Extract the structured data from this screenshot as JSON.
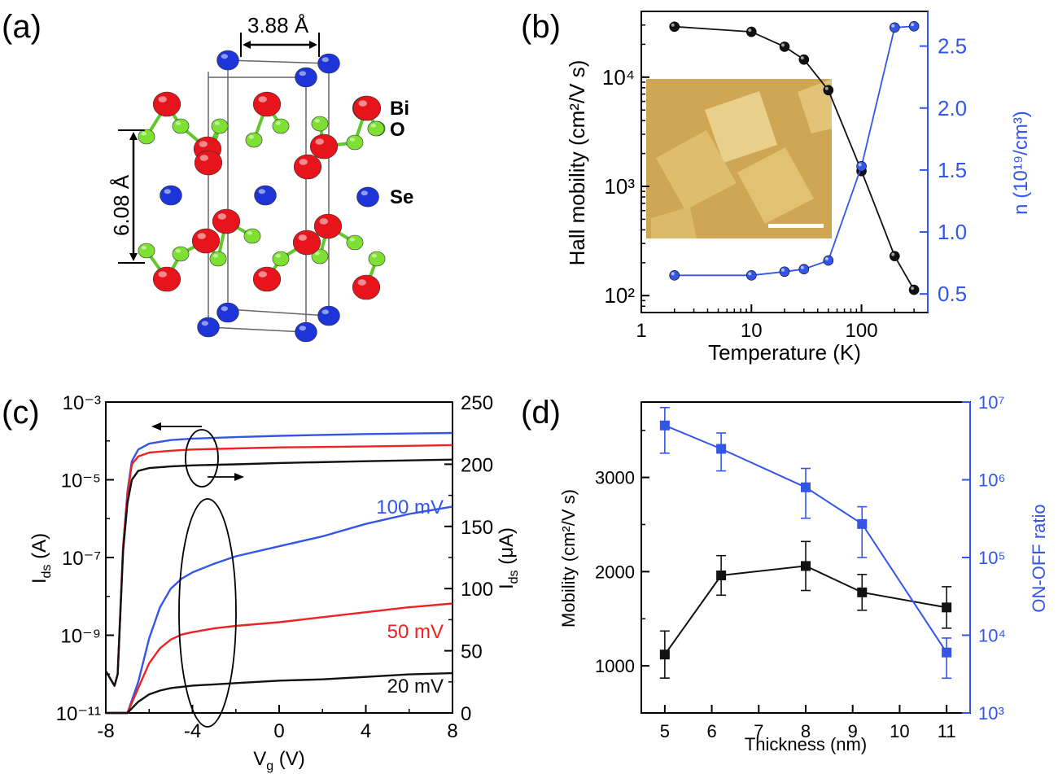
{
  "panels": {
    "a": {
      "label": "(a)",
      "lattice_a": "3.88 Å",
      "lattice_c": "6.08 Å",
      "legend": [
        {
          "name": "Bi",
          "color": "#e8141c"
        },
        {
          "name": "O",
          "color": "#7ee032"
        },
        {
          "name": "Se",
          "color": "#1c34d8"
        }
      ]
    },
    "b": {
      "label": "(b)"
    },
    "c": {
      "label": "(c)"
    },
    "d": {
      "label": "(d)"
    }
  },
  "colors": {
    "black": "#111111",
    "blue": "#3355e8",
    "red": "#ee2222",
    "axis_right": "#3355e8"
  },
  "chart_data": [
    {
      "id": "b",
      "type": "line",
      "xlabel": "Temperature (K)",
      "ylabel": "Hall mobility (cm²/V s)",
      "ylabel2": "n (10¹⁹/cm³)",
      "xscale": "log",
      "xlim": [
        1,
        400
      ],
      "yscale": "log",
      "ylim": [
        70,
        40000
      ],
      "y2lim": [
        0.35,
        2.78
      ],
      "xticks": [
        "1",
        "10",
        "100"
      ],
      "yticks": [
        "10²",
        "10³",
        "10⁴"
      ],
      "y2ticks": [
        "0.5",
        "1.0",
        "1.5",
        "2.0",
        "2.5"
      ],
      "inset": "AFM image of Bi2O2Se square flakes",
      "series": [
        {
          "axis": "left",
          "color": "#111111",
          "x": [
            2,
            10,
            20,
            30,
            50,
            100,
            200,
            300
          ],
          "y": [
            29000,
            26000,
            19000,
            14500,
            7600,
            1380,
            230,
            113
          ]
        },
        {
          "axis": "right",
          "color": "#3355e8",
          "x": [
            2,
            10,
            20,
            30,
            50,
            100,
            200,
            300
          ],
          "y": [
            0.65,
            0.65,
            0.68,
            0.7,
            0.77,
            1.53,
            2.65,
            2.66
          ]
        }
      ]
    },
    {
      "id": "c",
      "type": "line",
      "xlabel": "V (V)",
      "xlabel_sub": "g",
      "ylabel": "I (A)",
      "ylabel_sub": "ds",
      "ylabel2": "I (μA)",
      "ylabel2_sub": "ds",
      "xlim": [
        -8,
        8
      ],
      "xticks": [
        "-8",
        "-4",
        "0",
        "4",
        "8"
      ],
      "yscale": "log",
      "ylim": [
        1e-11,
        0.001
      ],
      "yticks": [
        "10⁻¹¹",
        "10⁻⁹",
        "10⁻⁷",
        "10⁻⁵",
        "10⁻³"
      ],
      "y2lim": [
        0,
        250
      ],
      "y2ticks": [
        "0",
        "50",
        "100",
        "150",
        "200",
        "250"
      ],
      "series": [
        {
          "name": "100 mV",
          "color": "#3355e8",
          "axis": "left",
          "x": [
            -8,
            -7.6,
            -7.45,
            -7.2,
            -7,
            -6.8,
            -6.5,
            -6,
            -5,
            -4,
            -2,
            0,
            4,
            8
          ],
          "y": [
            1.2e-10,
            5e-11,
            1e-10,
            2e-07,
            5e-06,
            3e-05,
            6e-05,
            8.5e-05,
            0.000105,
            0.000115,
            0.000125,
            0.000135,
            0.00015,
            0.00016
          ]
        },
        {
          "name": "50 mV",
          "color": "#ee2222",
          "axis": "left",
          "x": [
            -8,
            -7.6,
            -7.45,
            -7.2,
            -7,
            -6.8,
            -6.5,
            -6,
            -5,
            -4,
            -2,
            0,
            4,
            8
          ],
          "y": [
            1.2e-10,
            5e-11,
            1e-10,
            2e-07,
            4e-06,
            2.5e-05,
            4e-05,
            5e-05,
            5.6e-05,
            6e-05,
            6.4e-05,
            6.8e-05,
            7.2e-05,
            7.8e-05
          ]
        },
        {
          "name": "20 mV",
          "color": "#111111",
          "axis": "left",
          "x": [
            -8,
            -7.6,
            -7.45,
            -7.2,
            -7,
            -6.8,
            -6.5,
            -6,
            -5,
            -4,
            -2,
            0,
            4,
            8
          ],
          "y": [
            1.2e-10,
            5e-11,
            1e-10,
            1.5e-07,
            2.5e-06,
            1e-05,
            1.7e-05,
            2e-05,
            2.2e-05,
            2.35e-05,
            2.5e-05,
            2.7e-05,
            3e-05,
            3.3e-05
          ]
        },
        {
          "name": "100 mV",
          "color": "#3355e8",
          "axis": "right",
          "x": [
            -8,
            -7,
            -6.5,
            -6,
            -5.5,
            -5,
            -4.5,
            -4,
            -3,
            -2,
            0,
            2,
            4,
            6,
            8
          ],
          "y": [
            0,
            0,
            25,
            60,
            85,
            100,
            108,
            113,
            120,
            126,
            134,
            142,
            152,
            160,
            166
          ]
        },
        {
          "name": "50 mV",
          "color": "#ee2222",
          "axis": "right",
          "x": [
            -8,
            -7,
            -6.5,
            -6,
            -5.5,
            -5,
            -4.5,
            -4,
            -3,
            -2,
            0,
            2,
            4,
            6,
            8
          ],
          "y": [
            0,
            0,
            20,
            40,
            52,
            59,
            63,
            65,
            68,
            70,
            73,
            77,
            81,
            85,
            88
          ]
        },
        {
          "name": "20 mV",
          "color": "#111111",
          "axis": "right",
          "x": [
            -8,
            -7,
            -6.5,
            -6,
            -5.5,
            -5,
            -4.5,
            -4,
            -3,
            -2,
            0,
            2,
            4,
            6,
            8
          ],
          "y": [
            0,
            0,
            9,
            15,
            18,
            20,
            21,
            22,
            23,
            24,
            26,
            27,
            29,
            31,
            32
          ]
        }
      ]
    },
    {
      "id": "d",
      "type": "line",
      "xlabel": "Thickness (nm)",
      "ylabel": "Mobility (cm²/V s)",
      "ylabel2": "ON-OFF ratio",
      "xlim": [
        4.5,
        11.5
      ],
      "xticks": [
        "5",
        "6",
        "7",
        "8",
        "9",
        "10",
        "11"
      ],
      "ylim": [
        500,
        3800
      ],
      "yticks": [
        "1000",
        "2000",
        "3000"
      ],
      "y2scale": "log",
      "y2lim": [
        1000,
        10000000
      ],
      "y2ticks": [
        "10³",
        "10⁴",
        "10⁵",
        "10⁶",
        "10⁷"
      ],
      "series": [
        {
          "axis": "left",
          "color": "#111111",
          "x": [
            5,
            6.2,
            8,
            9.2,
            11
          ],
          "y": [
            1120,
            1960,
            2060,
            1780,
            1620
          ],
          "err": [
            250,
            210,
            260,
            190,
            220
          ]
        },
        {
          "axis": "right",
          "color": "#3355e8",
          "x": [
            5,
            6.2,
            8,
            9.2,
            11
          ],
          "y": [
            5000000,
            2500000,
            800000,
            270000,
            6000
          ],
          "err_low": [
            2200000,
            1300000,
            320000,
            100000,
            2800
          ],
          "err_high": [
            8500000,
            4000000,
            1400000,
            450000,
            9200
          ]
        }
      ]
    }
  ]
}
